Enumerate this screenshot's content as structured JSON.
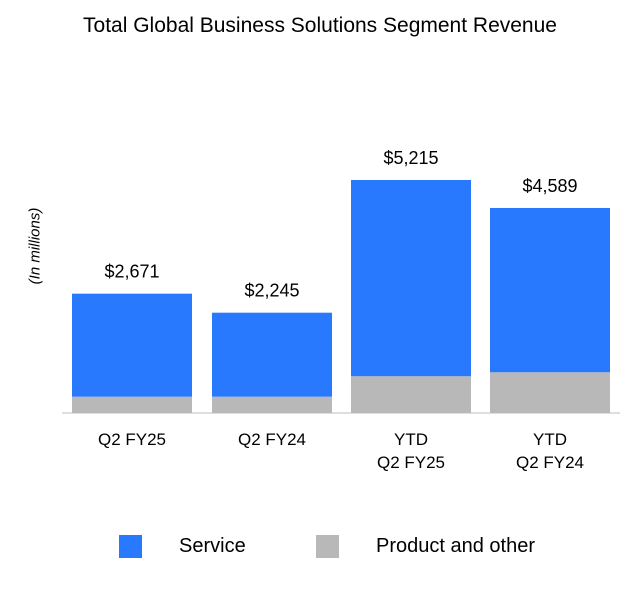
{
  "chart_data": {
    "type": "bar",
    "stacked": true,
    "title": "Total Global Business Solutions Segment Revenue",
    "ylabel": "(In millions)",
    "xlabel": "",
    "categories": [
      [
        "Q2 FY25"
      ],
      [
        "Q2 FY24"
      ],
      [
        "YTD",
        "Q2 FY25"
      ],
      [
        "YTD",
        "Q2 FY24"
      ]
    ],
    "totals": [
      2671,
      2245,
      5215,
      4589
    ],
    "total_labels": [
      "$2,671",
      "$2,245",
      "$5,215",
      "$4,589"
    ],
    "series": [
      {
        "name": "Product and other",
        "color": "#b8b8b8",
        "values": [
          366,
          366,
          823,
          912
        ]
      },
      {
        "name": "Service",
        "color": "#2979ff",
        "values": [
          2305,
          1879,
          4392,
          3677
        ]
      }
    ],
    "ylim": [
      0,
      5700
    ],
    "grid": false,
    "legend_position": "bottom"
  }
}
